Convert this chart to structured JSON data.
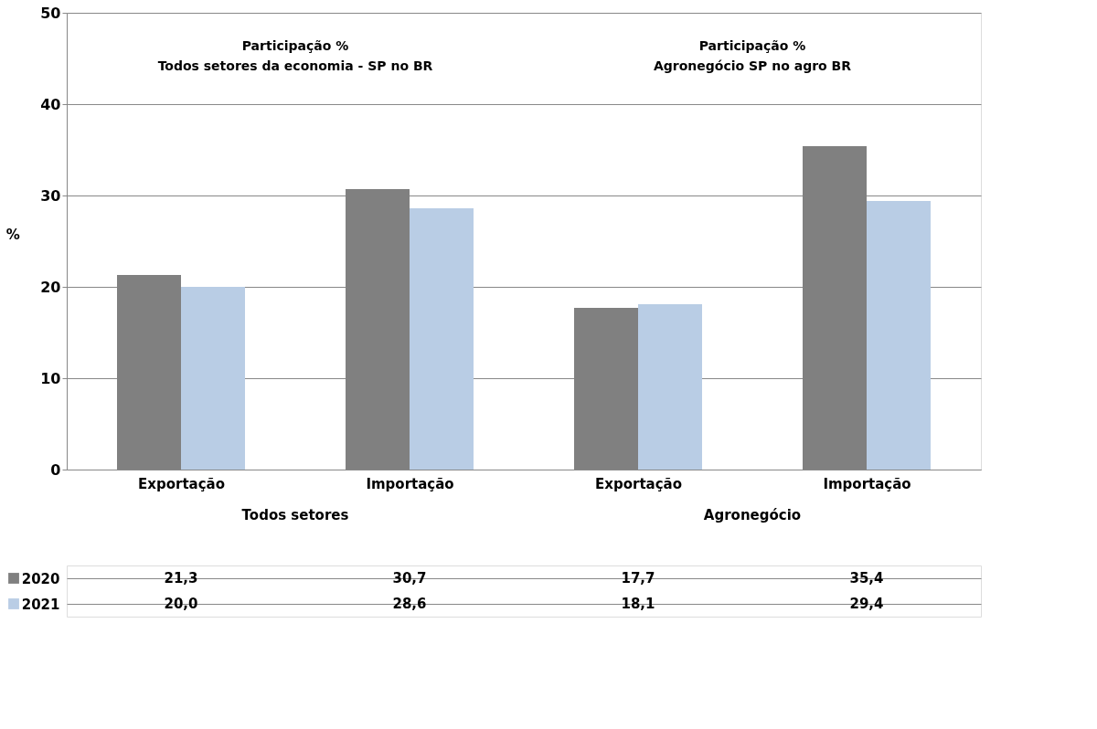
{
  "chart_data": {
    "type": "bar",
    "ylabel": "%",
    "categories": [
      "Exportação",
      "Importação",
      "Exportação",
      "Importação"
    ],
    "series": [
      {
        "name": "2020",
        "color": "#808080",
        "values": [
          21.3,
          30.7,
          17.7,
          35.4
        ],
        "value_labels": [
          "21,3",
          "30,7",
          "17,7",
          "35,4"
        ]
      },
      {
        "name": "2021",
        "color": "#b9cde5",
        "values": [
          20.0,
          28.6,
          18.1,
          29.4
        ],
        "value_labels": [
          "20,0",
          "28,6",
          "18,1",
          "29,4"
        ]
      }
    ],
    "ylim": [
      0,
      50
    ],
    "yticks": [
      0,
      10,
      20,
      30,
      40,
      50
    ],
    "grid": "y",
    "legend": "bottom",
    "annotations": [
      "Participação %\nTodos setores da economia - SP no BR",
      "Participação %\nAgronegócio SP no agro  BR",
      "Todos setores",
      "Agronegócio"
    ]
  }
}
